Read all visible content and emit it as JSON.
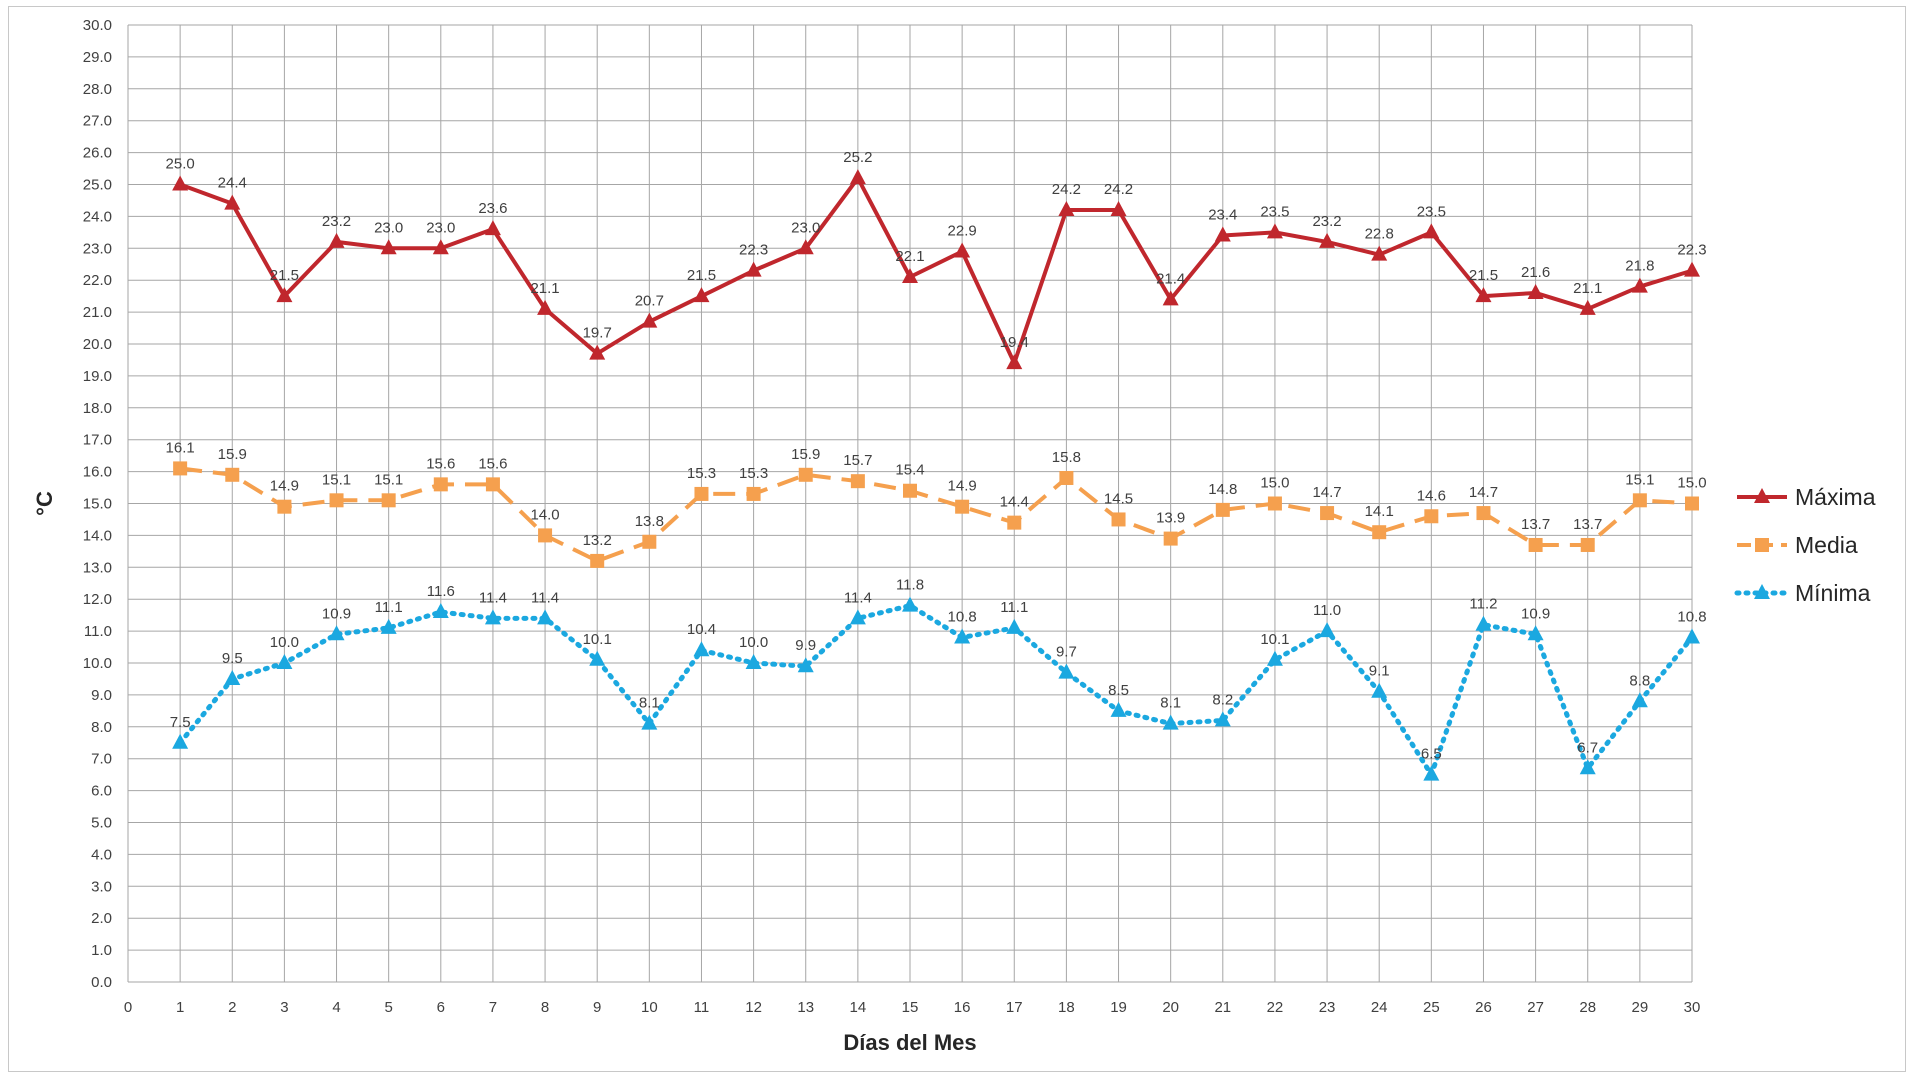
{
  "chart_data": {
    "type": "line",
    "title": "",
    "xlabel": "Días del Mes",
    "ylabel": "°C",
    "xlim": [
      0,
      30
    ],
    "ylim": [
      0,
      30
    ],
    "grid": true,
    "legend_position": "right",
    "x_ticks": [
      0,
      1,
      2,
      3,
      4,
      5,
      6,
      7,
      8,
      9,
      10,
      11,
      12,
      13,
      14,
      15,
      16,
      17,
      18,
      19,
      20,
      21,
      22,
      23,
      24,
      25,
      26,
      27,
      28,
      29,
      30
    ],
    "y_ticks": [
      "0.0",
      "1.0",
      "2.0",
      "3.0",
      "4.0",
      "5.0",
      "6.0",
      "7.0",
      "8.0",
      "9.0",
      "10.0",
      "11.0",
      "12.0",
      "13.0",
      "14.0",
      "15.0",
      "16.0",
      "17.0",
      "18.0",
      "19.0",
      "20.0",
      "21.0",
      "22.0",
      "23.0",
      "24.0",
      "25.0",
      "26.0",
      "27.0",
      "28.0",
      "29.0",
      "30.0"
    ],
    "x": [
      1,
      2,
      3,
      4,
      5,
      6,
      7,
      8,
      9,
      10,
      11,
      12,
      13,
      14,
      15,
      16,
      17,
      18,
      19,
      20,
      21,
      22,
      23,
      24,
      25,
      26,
      27,
      28,
      29,
      30
    ],
    "series": [
      {
        "name": "Máxima",
        "color": "#c0272d",
        "marker": "triangle",
        "line_style": "solid",
        "values": [
          25.0,
          24.4,
          21.5,
          23.2,
          23.0,
          23.0,
          23.6,
          21.1,
          19.7,
          20.7,
          21.5,
          22.3,
          23.0,
          25.2,
          22.1,
          22.9,
          19.4,
          24.2,
          24.2,
          21.4,
          23.4,
          23.5,
          23.2,
          22.8,
          23.5,
          21.5,
          21.6,
          21.1,
          21.8,
          22.3
        ]
      },
      {
        "name": "Media",
        "color": "#f5a04e",
        "marker": "square",
        "line_style": "dashed",
        "values": [
          16.1,
          15.9,
          14.9,
          15.1,
          15.1,
          15.6,
          15.6,
          14.0,
          13.2,
          13.8,
          15.3,
          15.3,
          15.9,
          15.7,
          15.4,
          14.9,
          14.4,
          15.8,
          14.5,
          13.9,
          14.8,
          15.0,
          14.7,
          14.1,
          14.6,
          14.7,
          13.7,
          13.7,
          15.1,
          15.0
        ]
      },
      {
        "name": "Mínima",
        "color": "#1ba8e0",
        "marker": "triangle",
        "line_style": "dotted",
        "values": [
          7.5,
          9.5,
          10.0,
          10.9,
          11.1,
          11.6,
          11.4,
          11.4,
          10.1,
          8.1,
          10.4,
          10.0,
          9.9,
          11.4,
          11.8,
          10.8,
          11.1,
          9.7,
          8.5,
          8.1,
          8.2,
          10.1,
          11.0,
          9.1,
          6.5,
          11.2,
          10.9,
          6.7,
          8.8,
          10.8
        ]
      }
    ]
  }
}
